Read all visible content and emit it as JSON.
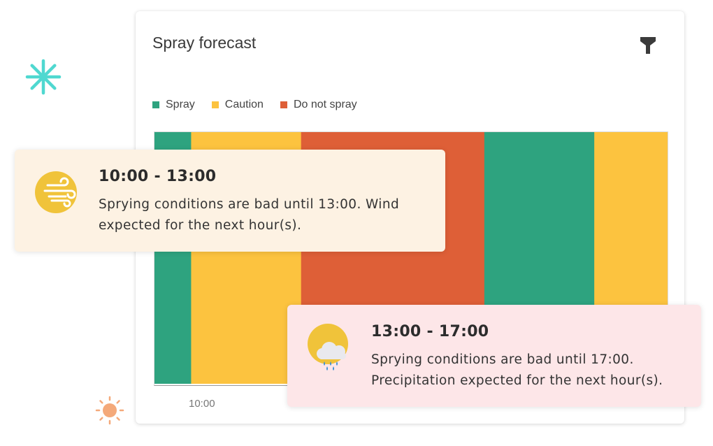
{
  "card": {
    "title": "Spray forecast",
    "filter_icon": "filter-funnel-icon"
  },
  "legend": [
    {
      "label": "Spray",
      "color": "#2ea37f"
    },
    {
      "label": "Caution",
      "color": "#fcc33f"
    },
    {
      "label": "Do not spray",
      "color": "#de5f37"
    }
  ],
  "chart_data": {
    "type": "bar",
    "title": "Spray forecast",
    "orientation": "horizontal-timeline",
    "x_tick_labels": [
      "10:00"
    ],
    "segments": [
      {
        "status": "Spray",
        "color": "#2ea37f",
        "weight": 1
      },
      {
        "status": "Caution",
        "color": "#fcc33f",
        "weight": 3
      },
      {
        "status": "Do not spray",
        "color": "#de5f37",
        "weight": 5
      },
      {
        "status": "Spray",
        "color": "#2ea37f",
        "weight": 3
      },
      {
        "status": "Caution",
        "color": "#fcc33f",
        "weight": 2
      }
    ],
    "grid": false,
    "legend_position": "top-left"
  },
  "tooltips": [
    {
      "time": "10:00 - 13:00",
      "message": "Sprying conditions are bad until 13:00. Wind expected for the next hour(s).",
      "icon": "wind-icon"
    },
    {
      "time": "13:00 - 17:00",
      "message": "Sprying conditions are bad until 17:00. Precipitation expected for the next hour(s).",
      "icon": "rain-cloud-sun-icon"
    }
  ],
  "decorations": {
    "asterisk_icon": "asterisk-icon",
    "sun_icon": "sun-icon",
    "colors": {
      "asterisk": "#4fd8d0",
      "sun": "#f4a97a"
    }
  }
}
